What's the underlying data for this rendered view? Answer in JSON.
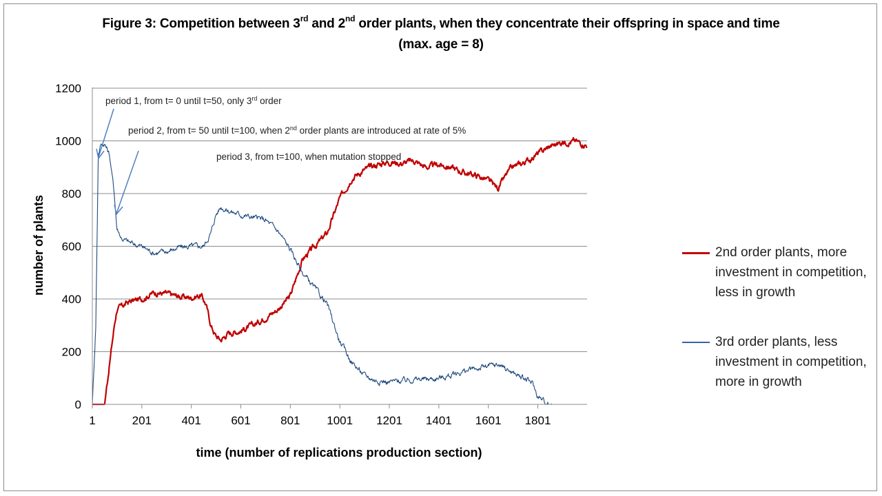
{
  "colors": {
    "series2": "#c00000",
    "series3": "#3465a4",
    "grid": "#8c8c8c",
    "arrow": "#4f81bd"
  },
  "title_html": "Figure  3: Competition between 3<sup>rd</sup> and 2<sup>nd</sup> order plants,  when they concentrate their offspring  in space and time",
  "title_line2": "(max. age =  8)",
  "annotations": {
    "period1": "period 1, from t= 0 until t=50, only 3<tspan baseline-shift='super' font-size='9'>rd</tspan> order",
    "period2": "period 2, from t= 50 until t=100, when 2<tspan baseline-shift='super' font-size='9'>nd</tspan> order plants are introduced at  rate of 5%",
    "period3": "period 3, from t=100, when mutation stopped"
  },
  "chart_data": {
    "type": "line",
    "xlabel": "time (number of replications production section)",
    "ylabel": "number of plants",
    "xlim": [
      1,
      2000
    ],
    "ylim": [
      0,
      1200
    ],
    "x_ticks": [
      1,
      201,
      401,
      601,
      801,
      1001,
      1201,
      1401,
      1601,
      1801
    ],
    "y_ticks": [
      0,
      200,
      400,
      600,
      800,
      1000,
      1200
    ],
    "grid": "horizontal",
    "legend_position": "right",
    "series": [
      {
        "name": "2nd order plants, more investment in competition, less in growth",
        "color": "#c00000",
        "x": [
          1,
          50,
          70,
          90,
          100,
          150,
          200,
          250,
          300,
          350,
          400,
          440,
          460,
          480,
          500,
          520,
          550,
          600,
          650,
          700,
          750,
          800,
          850,
          900,
          950,
          1000,
          1050,
          1100,
          1150,
          1200,
          1250,
          1300,
          1350,
          1400,
          1450,
          1500,
          1550,
          1600,
          1640,
          1680,
          1700,
          1750,
          1800,
          1850,
          1900,
          1950,
          2000
        ],
        "y": [
          0,
          0,
          150,
          300,
          360,
          390,
          400,
          425,
          420,
          410,
          405,
          415,
          380,
          300,
          260,
          245,
          270,
          280,
          300,
          330,
          360,
          410,
          550,
          600,
          650,
          780,
          860,
          890,
          910,
          920,
          915,
          925,
          900,
          910,
          900,
          880,
          870,
          850,
          820,
          880,
          900,
          920,
          950,
          980,
          995,
          1000,
          985
        ]
      },
      {
        "name": "3rd order plants, less investment in competition, more in growth",
        "color": "#1f497d",
        "x": [
          1,
          15,
          25,
          35,
          50,
          70,
          90,
          100,
          120,
          150,
          200,
          250,
          300,
          350,
          400,
          450,
          480,
          500,
          520,
          550,
          600,
          650,
          700,
          750,
          800,
          850,
          900,
          950,
          1000,
          1050,
          1100,
          1150,
          1200,
          1250,
          1300,
          1350,
          1400,
          1450,
          1500,
          1550,
          1600,
          1650,
          1700,
          1750,
          1780,
          1800,
          1830,
          1860,
          1900,
          2000
        ],
        "y": [
          0,
          300,
          950,
          985,
          990,
          950,
          800,
          670,
          630,
          615,
          600,
          575,
          580,
          595,
          600,
          600,
          650,
          720,
          750,
          735,
          720,
          710,
          700,
          660,
          590,
          500,
          440,
          380,
          240,
          160,
          110,
          90,
          85,
          90,
          95,
          95,
          100,
          110,
          125,
          135,
          145,
          150,
          120,
          95,
          80,
          30,
          10,
          0,
          0,
          0
        ]
      }
    ]
  }
}
